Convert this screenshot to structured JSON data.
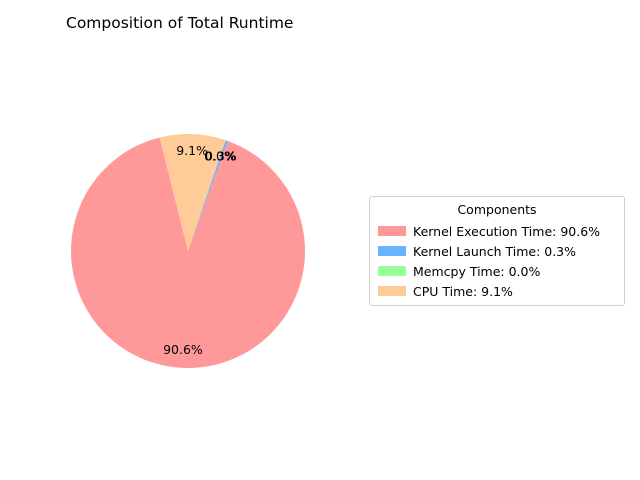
{
  "chart_data": {
    "type": "pie",
    "title": "Composition of Total Runtime",
    "start_angle_deg": 104,
    "direction": "counterclockwise",
    "slices": [
      {
        "label": "Kernel Execution Time",
        "value": 90.6,
        "pct_label": "90.6%",
        "legend_label": "Kernel Execution Time: 90.6%",
        "color": "#ff9999"
      },
      {
        "label": "Kernel Launch Time",
        "value": 0.3,
        "pct_label": "0.3%",
        "legend_label": "Kernel Launch Time: 0.3%",
        "color": "#66b3ff"
      },
      {
        "label": "Memcpy Time",
        "value": 0.0,
        "pct_label": "0.0%",
        "legend_label": "Memcpy Time: 0.0%",
        "color": "#99ff99"
      },
      {
        "label": "CPU Time",
        "value": 9.1,
        "pct_label": "9.1%",
        "legend_label": "CPU Time: 9.1%",
        "color": "#ffcc99"
      }
    ],
    "legend": {
      "title": "Components",
      "placement": "center-right"
    }
  }
}
